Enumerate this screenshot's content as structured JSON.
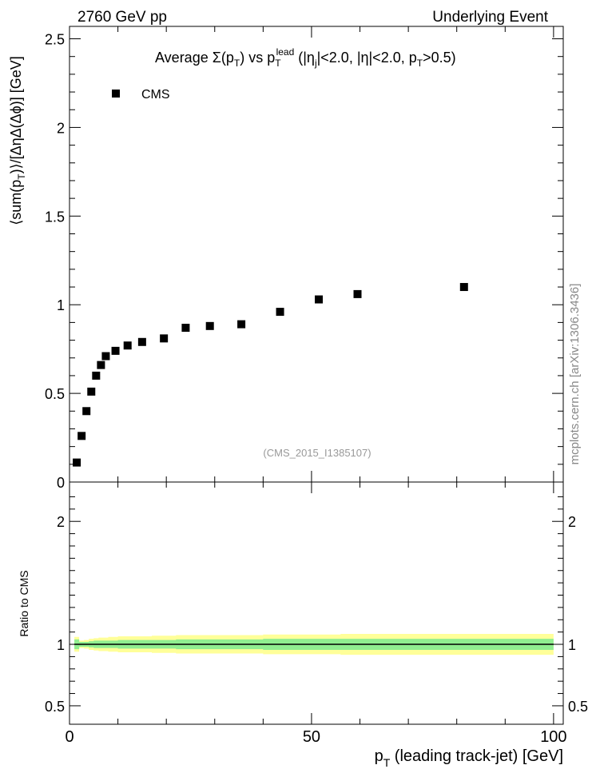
{
  "header": {
    "left": "2760 GeV pp",
    "right": "Underlying Event"
  },
  "plot_title": {
    "pre": "Average ",
    "sigma": "Σ(p",
    "t_sub": "T",
    "close": ") vs p",
    "t_sub2": "T",
    "lead_sup": "lead",
    "cuts_a": " (|η",
    "j_sub": "j",
    "cuts_b": "|<2.0, |η|<2.0, p",
    "t_sub3": "T",
    "cuts_c": ">0.5)"
  },
  "side_label": "mcplots.cern.ch [arXiv:1306.3436]",
  "analysis_id": "(CMS_2015_I1385107)",
  "legend": {
    "entry": "CMS"
  },
  "top_ylabel": {
    "a": "⟨sum(p",
    "sub": "T",
    "b": ")⟩/[ΔηΔ(Δϕ)] [GeV]"
  },
  "ratio_ylabel": "Ratio to CMS",
  "xlabel": {
    "a": "p",
    "sub": "T",
    "b": " (leading track-jet) [GeV]"
  },
  "colors": {
    "marker": "#000000",
    "band_inner": "#90ee90",
    "band_outer": "#ffff99",
    "annotation": "#999999",
    "side_label": "#888888"
  },
  "chart_data": [
    {
      "type": "scatter",
      "name": "main",
      "series": [
        {
          "name": "CMS",
          "x": [
            1.5,
            2.5,
            3.5,
            4.5,
            5.5,
            6.5,
            7.5,
            9.5,
            12,
            15,
            19.5,
            24,
            29,
            35.5,
            43.5,
            51.5,
            59.5,
            81.5
          ],
          "y": [
            0.11,
            0.26,
            0.4,
            0.51,
            0.6,
            0.66,
            0.71,
            0.74,
            0.77,
            0.79,
            0.81,
            0.87,
            0.88,
            0.89,
            0.96,
            1.03,
            1.06,
            1.1
          ]
        }
      ],
      "xlim": [
        0,
        102
      ],
      "ylim": [
        0,
        2.57
      ],
      "yticks": [
        "0",
        "0.5",
        "1",
        "1.5",
        "2",
        "2.5"
      ],
      "grid": false,
      "legend": "top-left"
    },
    {
      "type": "area",
      "name": "ratio",
      "ylim": [
        0.35,
        2.32
      ],
      "yticks": [
        "0.5",
        "1",
        "2"
      ],
      "xticks": [
        "0",
        "50",
        "100"
      ],
      "reference": 1.0,
      "bands": [
        {
          "x": [
            1,
            2,
            3,
            4,
            5,
            6,
            8,
            10,
            13,
            17,
            22,
            27,
            33,
            40,
            48,
            56,
            64,
            100
          ],
          "inner_up": [
            1.04,
            1.02,
            1.02,
            1.025,
            1.03,
            1.03,
            1.03,
            1.035,
            1.035,
            1.035,
            1.04,
            1.04,
            1.04,
            1.045,
            1.045,
            1.045,
            1.045,
            1.045
          ],
          "inner_dn": [
            0.96,
            0.98,
            0.98,
            0.975,
            0.97,
            0.97,
            0.97,
            0.965,
            0.965,
            0.965,
            0.96,
            0.96,
            0.96,
            0.955,
            0.955,
            0.955,
            0.955,
            0.955
          ],
          "outer_up": [
            1.06,
            1.03,
            1.035,
            1.045,
            1.05,
            1.055,
            1.06,
            1.065,
            1.065,
            1.07,
            1.075,
            1.075,
            1.075,
            1.08,
            1.08,
            1.085,
            1.085,
            1.085
          ],
          "outer_dn": [
            0.94,
            0.97,
            0.965,
            0.955,
            0.95,
            0.945,
            0.94,
            0.935,
            0.935,
            0.93,
            0.925,
            0.925,
            0.925,
            0.92,
            0.92,
            0.915,
            0.915,
            0.915
          ]
        }
      ]
    }
  ]
}
